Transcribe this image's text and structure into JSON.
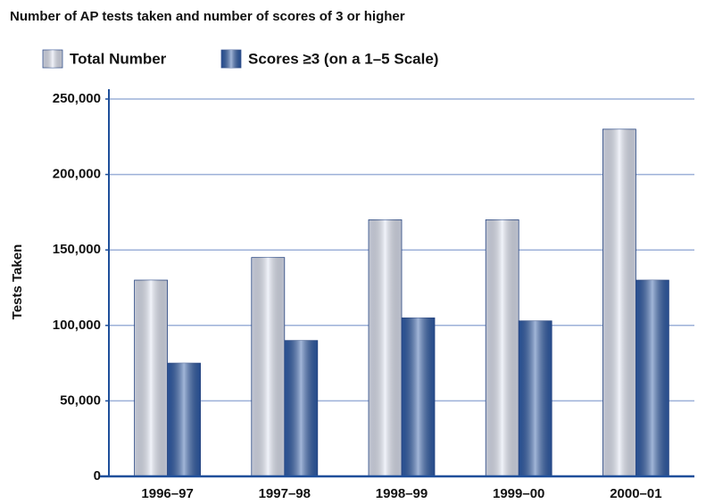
{
  "chart_data": {
    "type": "bar",
    "title": "Number of AP tests taken and number of scores of 3 or higher",
    "y_label": "Tests Taken",
    "categories": [
      "1996–97",
      "1997–98",
      "1998–99",
      "1999–00",
      "2000–01"
    ],
    "series": [
      {
        "name": "Total Number",
        "color": "#dfe4f3",
        "values": [
          130000,
          145000,
          170000,
          170000,
          230000
        ]
      },
      {
        "name": "Scores ≥3 (on a 1–5 Scale)",
        "color": "#2f5ca8",
        "values": [
          75000,
          90000,
          105000,
          103000,
          130000
        ]
      }
    ],
    "ylim": [
      0,
      250000
    ],
    "yticks": [
      0,
      {
        "value": 50000,
        "label": "50,000"
      },
      {
        "value": 100000,
        "label": "100,000"
      },
      {
        "value": 150000,
        "label": "150,000"
      },
      {
        "value": 200000,
        "label": "200,000"
      },
      {
        "value": 250000,
        "label": "250,000"
      }
    ],
    "grid": true
  }
}
